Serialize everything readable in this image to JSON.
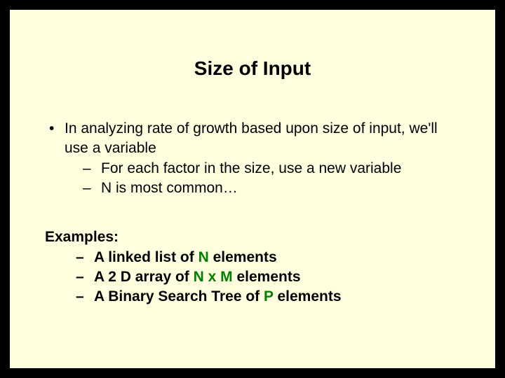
{
  "slide": {
    "background_color": "#ffffe0",
    "outer_background": "#000000",
    "border_color": "#000000",
    "text_color": "#000000",
    "highlight_color": "#008000",
    "title": {
      "text": "Size of Input",
      "fontsize": 28,
      "bold": true
    },
    "body_fontsize": 21,
    "bullets": [
      {
        "marker": "•",
        "text": "In analyzing rate of growth based upon size of input, we'll use a variable",
        "subs": [
          {
            "marker": "–",
            "text": "For each factor in the size, use a new variable"
          },
          {
            "marker": "–",
            "text": "N is most common…"
          }
        ]
      }
    ],
    "examples": {
      "label": "Examples:",
      "items": [
        {
          "marker": "–",
          "pre": "A linked list of ",
          "hl": "N",
          "post": " elements"
        },
        {
          "marker": "–",
          "pre": "A 2 D array of ",
          "hl": "N x M",
          "post": " elements"
        },
        {
          "marker": "–",
          "pre": "A Binary Search Tree of ",
          "hl": "P",
          "post": " elements"
        }
      ]
    }
  }
}
